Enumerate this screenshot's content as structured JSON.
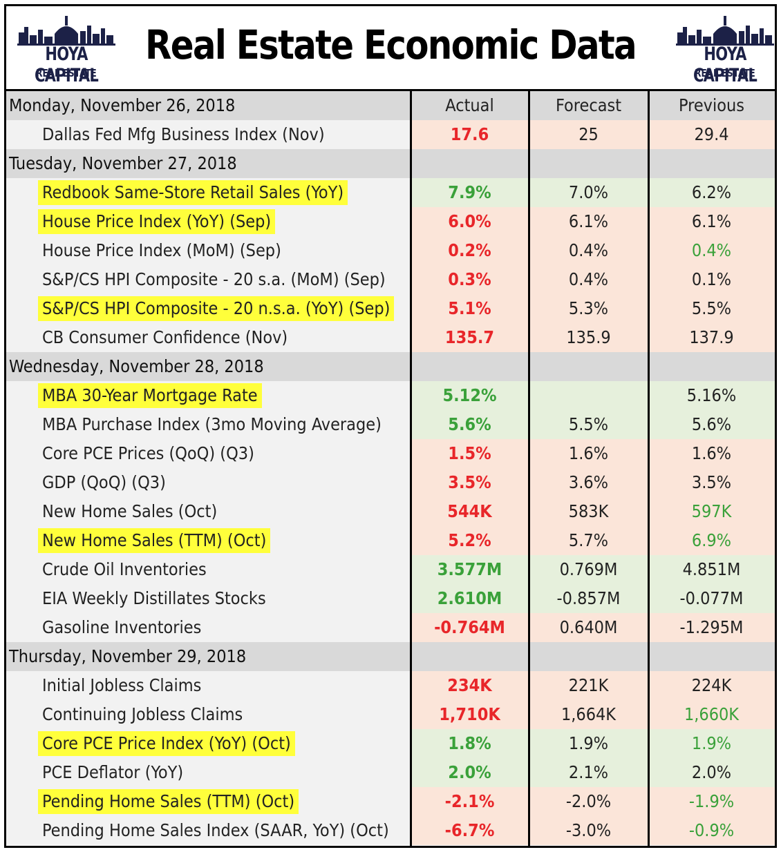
{
  "title": "Real Estate Economic Data",
  "logo": {
    "brand": "HOYA CAPITAL",
    "sub": "REAL ESTATE"
  },
  "columns": {
    "actual": "Actual",
    "forecast": "Forecast",
    "previous": "Previous"
  },
  "rows": [
    {
      "type": "date",
      "label": "Monday, November 26, 2018",
      "actual": "Actual",
      "forecast": "Forecast",
      "previous": "Previous"
    },
    {
      "type": "item",
      "label": "Dallas Fed Mfg Business Index (Nov)",
      "highlight": false,
      "actual": "17.6",
      "actual_color": "red",
      "forecast": "25",
      "previous": "29.4",
      "previous_color": "normal",
      "row_bg": "red"
    },
    {
      "type": "date",
      "label": "Tuesday, November 27, 2018",
      "actual": "",
      "forecast": "",
      "previous": ""
    },
    {
      "type": "item",
      "label": "Redbook Same-Store Retail Sales (YoY)",
      "highlight": true,
      "actual": "7.9%",
      "actual_color": "green",
      "forecast": "7.0%",
      "previous": "6.2%",
      "previous_color": "normal",
      "row_bg": "green"
    },
    {
      "type": "item",
      "label": "House Price Index (YoY) (Sep)",
      "highlight": true,
      "actual": "6.0%",
      "actual_color": "red",
      "forecast": "6.1%",
      "previous": "6.1%",
      "previous_color": "normal",
      "row_bg": "red"
    },
    {
      "type": "item",
      "label": "House Price Index (MoM) (Sep)",
      "highlight": false,
      "actual": "0.2%",
      "actual_color": "red",
      "forecast": "0.4%",
      "previous": "0.4%",
      "previous_color": "green",
      "row_bg": "red"
    },
    {
      "type": "item",
      "label": "S&P/CS HPI Composite - 20 s.a. (MoM) (Sep)",
      "highlight": false,
      "actual": "0.3%",
      "actual_color": "red",
      "forecast": "0.4%",
      "previous": "0.1%",
      "previous_color": "normal",
      "row_bg": "red"
    },
    {
      "type": "item",
      "label": "S&P/CS HPI Composite - 20 n.s.a. (YoY) (Sep)",
      "highlight": true,
      "actual": "5.1%",
      "actual_color": "red",
      "forecast": "5.3%",
      "previous": "5.5%",
      "previous_color": "normal",
      "row_bg": "red"
    },
    {
      "type": "item",
      "label": "CB Consumer Confidence (Nov)",
      "highlight": false,
      "actual": "135.7",
      "actual_color": "red",
      "forecast": "135.9",
      "previous": "137.9",
      "previous_color": "normal",
      "row_bg": "red"
    },
    {
      "type": "date",
      "label": "Wednesday, November 28, 2018",
      "actual": "",
      "forecast": "",
      "previous": ""
    },
    {
      "type": "item",
      "label": "MBA 30-Year Mortgage Rate",
      "highlight": true,
      "actual": "5.12%",
      "actual_color": "green",
      "forecast": "",
      "previous": "5.16%",
      "previous_color": "normal",
      "row_bg": "green"
    },
    {
      "type": "item",
      "label": "MBA Purchase Index (3mo Moving Average)",
      "highlight": false,
      "actual": "5.6%",
      "actual_color": "green",
      "forecast": "5.5%",
      "previous": "5.6%",
      "previous_color": "normal",
      "row_bg": "green"
    },
    {
      "type": "item",
      "label": "Core PCE Prices  (QoQ) (Q3)",
      "highlight": false,
      "actual": "1.5%",
      "actual_color": "red",
      "forecast": "1.6%",
      "previous": "1.6%",
      "previous_color": "normal",
      "row_bg": "red"
    },
    {
      "type": "item",
      "label": "GDP (QoQ) (Q3)",
      "highlight": false,
      "actual": "3.5%",
      "actual_color": "red",
      "forecast": "3.6%",
      "previous": "3.5%",
      "previous_color": "normal",
      "row_bg": "red"
    },
    {
      "type": "item",
      "label": "New Home Sales (Oct)",
      "highlight": false,
      "actual": "544K",
      "actual_color": "red",
      "forecast": "583K",
      "previous": "597K",
      "previous_color": "green",
      "row_bg": "red"
    },
    {
      "type": "item",
      "label": "New Home Sales (TTM) (Oct)",
      "highlight": true,
      "actual": "5.2%",
      "actual_color": "red",
      "forecast": "5.7%",
      "previous": "6.9%",
      "previous_color": "green",
      "row_bg": "red"
    },
    {
      "type": "item",
      "label": "Crude Oil Inventories",
      "highlight": false,
      "actual": "3.577M",
      "actual_color": "green",
      "forecast": "0.769M",
      "previous": "4.851M",
      "previous_color": "normal",
      "row_bg": "green"
    },
    {
      "type": "item",
      "label": "EIA Weekly Distillates Stocks",
      "highlight": false,
      "actual": "2.610M",
      "actual_color": "green",
      "forecast": "-0.857M",
      "previous": "-0.077M",
      "previous_color": "normal",
      "row_bg": "green"
    },
    {
      "type": "item",
      "label": "Gasoline Inventories",
      "highlight": false,
      "actual": "-0.764M",
      "actual_color": "red",
      "forecast": "0.640M",
      "previous": "-1.295M",
      "previous_color": "normal",
      "row_bg": "red"
    },
    {
      "type": "date",
      "label": "Thursday, November 29, 2018",
      "actual": "",
      "forecast": "",
      "previous": ""
    },
    {
      "type": "item",
      "label": "Initial Jobless Claims",
      "highlight": false,
      "actual": "234K",
      "actual_color": "red",
      "forecast": "221K",
      "previous": "224K",
      "previous_color": "normal",
      "row_bg": "red"
    },
    {
      "type": "item",
      "label": "Continuing Jobless Claims",
      "highlight": false,
      "actual": "1,710K",
      "actual_color": "red",
      "forecast": "1,664K",
      "previous": "1,660K",
      "previous_color": "green",
      "row_bg": "red"
    },
    {
      "type": "item",
      "label": "Core PCE Price Index (YoY) (Oct)",
      "highlight": true,
      "actual": "1.8%",
      "actual_color": "green",
      "forecast": "1.9%",
      "previous": "1.9%",
      "previous_color": "green",
      "row_bg": "green"
    },
    {
      "type": "item",
      "label": "PCE Deflator (YoY)",
      "highlight": false,
      "actual": "2.0%",
      "actual_color": "green",
      "forecast": "2.1%",
      "previous": "2.0%",
      "previous_color": "normal",
      "row_bg": "green"
    },
    {
      "type": "item",
      "label": "Pending Home Sales (TTM) (Oct)",
      "highlight": true,
      "actual": "-2.1%",
      "actual_color": "red",
      "forecast": "-2.0%",
      "previous": "-1.9%",
      "previous_color": "green",
      "row_bg": "red"
    },
    {
      "type": "item",
      "label": "Pending Home Sales Index (SAAR, YoY) (Oct)",
      "highlight": false,
      "actual": "-6.7%",
      "actual_color": "red",
      "forecast": "-3.0%",
      "previous": "-0.9%",
      "previous_color": "green",
      "row_bg": "red"
    }
  ],
  "colors": {
    "red_value": "#e8262a",
    "green_value": "#3aa13a",
    "highlight": "#ffff3b",
    "row_red": "#fbe5d9",
    "row_green": "#e6f0dc",
    "date_row": "#d9d9d9",
    "logo_navy": "#1c2147"
  }
}
